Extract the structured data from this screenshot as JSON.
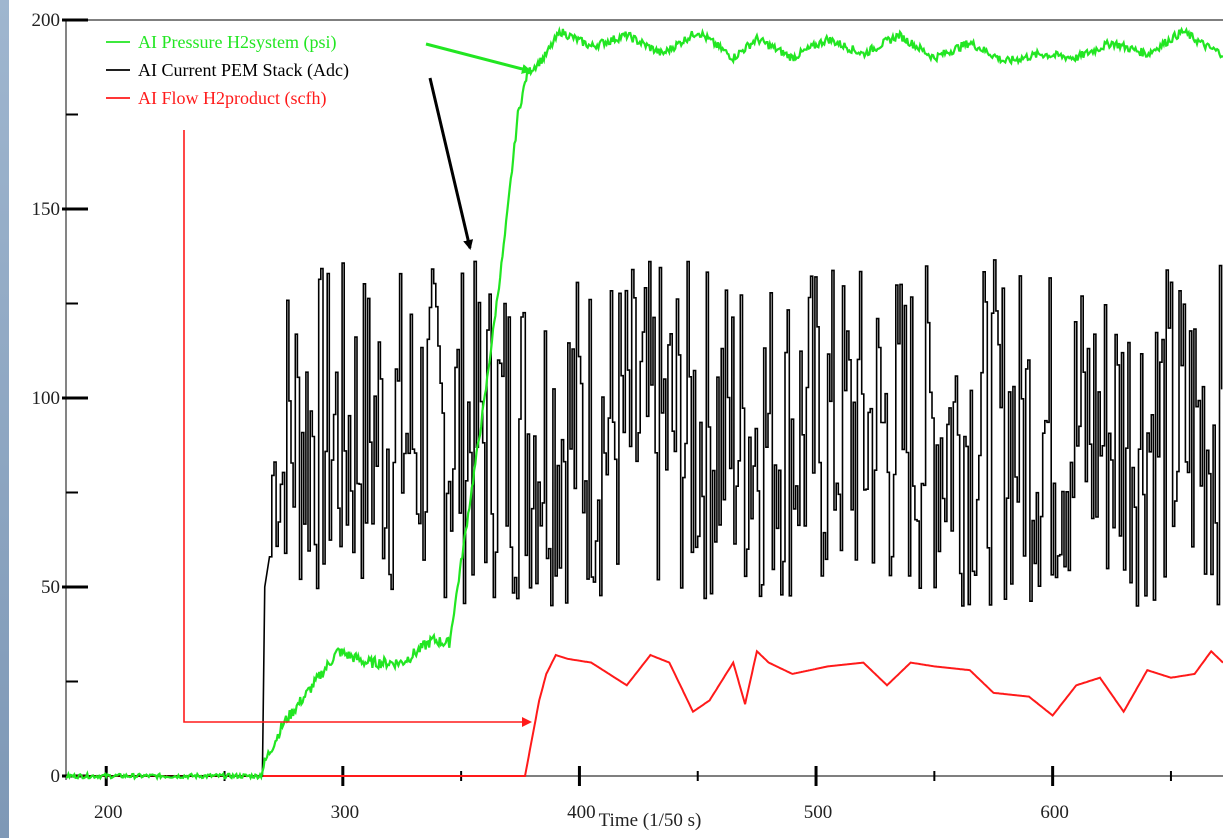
{
  "chart_data": {
    "type": "line",
    "xlabel": "Time (1/50 s)",
    "ylabel": "",
    "xlim": [
      183,
      672
    ],
    "ylim": [
      0,
      200
    ],
    "x_ticks": [
      200,
      300,
      400,
      500,
      600
    ],
    "y_ticks": [
      0,
      50,
      100,
      150,
      200
    ],
    "grid": false,
    "legend_position": "top-left",
    "series": [
      {
        "name": "AI Pressure H2system (psi)",
        "color": "#22e622",
        "style": "noisy",
        "x": [
          183,
          265,
          268,
          275,
          285,
          298,
          310,
          325,
          338,
          345,
          352,
          360,
          368,
          374,
          378,
          385,
          392,
          405,
          420,
          435,
          450,
          465,
          475,
          490,
          505,
          520,
          535,
          550,
          565,
          580,
          595,
          610,
          625,
          640,
          655,
          665,
          672
        ],
        "y": [
          0,
          0,
          5,
          14,
          22,
          33,
          30,
          30,
          36,
          35,
          65,
          100,
          140,
          175,
          186,
          190,
          197,
          193,
          196,
          191,
          197,
          190,
          195,
          190,
          195,
          191,
          196,
          190,
          194,
          189,
          191,
          190,
          194,
          191,
          197,
          193,
          191
        ]
      },
      {
        "name": "AI Current PEM Stack (Adc)",
        "color": "#000000",
        "style": "step-noisy",
        "x": [
          183,
          266,
          267,
          269,
          271,
          274,
          280,
          672
        ],
        "y": [
          0,
          0,
          50,
          58,
          78,
          90,
          92,
          92
        ],
        "noise_range": [
          45,
          137
        ]
      },
      {
        "name": "AI Flow H2product (scfh)",
        "color": "#ff1a1a",
        "style": "smooth",
        "x": [
          183,
          377,
          380,
          383,
          386,
          390,
          395,
          405,
          420,
          430,
          438,
          448,
          455,
          465,
          470,
          475,
          480,
          490,
          505,
          520,
          530,
          540,
          550,
          565,
          575,
          590,
          600,
          610,
          620,
          630,
          640,
          650,
          660,
          667,
          672
        ],
        "y": [
          0,
          0,
          10,
          20,
          27,
          32,
          31,
          30,
          24,
          32,
          30,
          17,
          20,
          30,
          19,
          33,
          30,
          27,
          29,
          30,
          24,
          30,
          29,
          28,
          22,
          21,
          16,
          24,
          26,
          17,
          28,
          26,
          27,
          33,
          30
        ]
      }
    ],
    "legend_entries": [
      "AI Pressure H2system (psi)",
      "AI Current PEM Stack (Adc)",
      "AI Flow H2product (scfh)"
    ]
  }
}
